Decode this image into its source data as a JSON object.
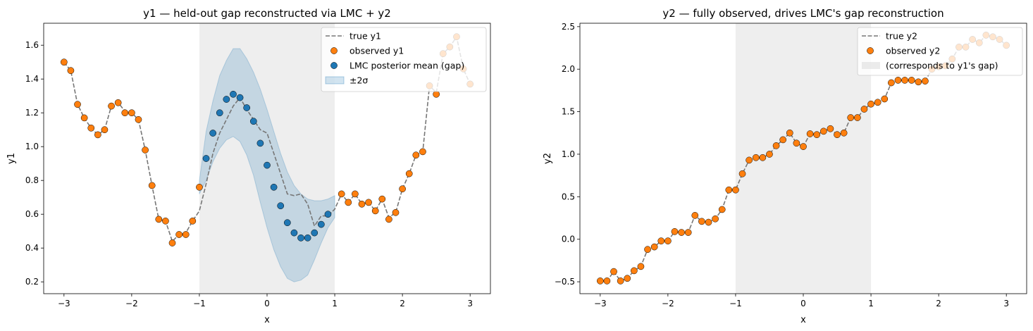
{
  "colors": {
    "observed": "#ff7f0e",
    "lmc": "#1f77b4",
    "band": "#1f77b4",
    "true_line": "#777777",
    "gap_shade": "#dddddd"
  },
  "chart_data": [
    {
      "type": "scatter",
      "title": "y1 — held-out gap reconstructed via LMC + y2",
      "xlabel": "x",
      "ylabel": "y1",
      "xlim": [
        -3.3,
        3.3
      ],
      "ylim": [
        0.13,
        1.73
      ],
      "xticks": [
        -3,
        -2,
        -1,
        0,
        1,
        2,
        3
      ],
      "xtick_labels": [
        "−3",
        "−2",
        "−1",
        "0",
        "1",
        "2",
        "3"
      ],
      "yticks": [
        0.2,
        0.4,
        0.6,
        0.8,
        1.0,
        1.2,
        1.4,
        1.6
      ],
      "ytick_labels": [
        "0.2",
        "0.4",
        "0.6",
        "0.8",
        "1.0",
        "1.2",
        "1.4",
        "1.6"
      ],
      "gap_region": [
        -1.0,
        1.0
      ],
      "grid": false,
      "legend_position": "top-right",
      "legend": [
        "true y1",
        "observed y1",
        "LMC posterior mean (gap)",
        "±2σ"
      ],
      "true_line": {
        "x": [
          -3.0,
          -2.9,
          -2.8,
          -2.7,
          -2.6,
          -2.5,
          -2.4,
          -2.3,
          -2.2,
          -2.1,
          -2.0,
          -1.9,
          -1.8,
          -1.7,
          -1.6,
          -1.5,
          -1.4,
          -1.3,
          -1.2,
          -1.1,
          -1.0,
          -0.9,
          -0.8,
          -0.7,
          -0.6,
          -0.5,
          -0.4,
          -0.3,
          -0.2,
          -0.1,
          0.0,
          0.1,
          0.2,
          0.3,
          0.4,
          0.5,
          0.6,
          0.7,
          0.8,
          0.9,
          1.0,
          1.1,
          1.2,
          1.3,
          1.4,
          1.5,
          1.6,
          1.7,
          1.8,
          1.9,
          2.0,
          2.1,
          2.2,
          2.3,
          2.4,
          2.5,
          2.6,
          2.7,
          2.8,
          2.9,
          3.0
        ],
        "y": [
          1.5,
          1.45,
          1.25,
          1.17,
          1.11,
          1.07,
          1.1,
          1.24,
          1.26,
          1.21,
          1.2,
          1.16,
          0.98,
          0.77,
          0.57,
          0.56,
          0.44,
          0.48,
          0.49,
          0.56,
          0.62,
          0.78,
          0.96,
          1.08,
          1.16,
          1.24,
          1.29,
          1.22,
          1.16,
          1.1,
          1.08,
          0.96,
          0.84,
          0.72,
          0.71,
          0.72,
          0.66,
          0.53,
          0.59,
          0.59,
          0.63,
          0.72,
          0.67,
          0.72,
          0.66,
          0.67,
          0.62,
          0.69,
          0.58,
          0.61,
          0.75,
          0.84,
          0.95,
          0.97,
          1.36,
          1.32,
          1.55,
          1.59,
          1.65,
          1.46,
          1.37
        ]
      },
      "observed": {
        "x": [
          -3.0,
          -2.9,
          -2.8,
          -2.7,
          -2.6,
          -2.5,
          -2.4,
          -2.3,
          -2.2,
          -2.1,
          -2.0,
          -1.9,
          -1.8,
          -1.7,
          -1.6,
          -1.5,
          -1.4,
          -1.3,
          -1.2,
          -1.1,
          -1.0,
          1.1,
          1.2,
          1.3,
          1.4,
          1.5,
          1.6,
          1.7,
          1.8,
          1.9,
          2.0,
          2.1,
          2.2,
          2.3,
          2.4,
          2.5,
          2.6,
          2.7,
          2.8,
          2.9,
          3.0
        ],
        "y": [
          1.5,
          1.45,
          1.25,
          1.17,
          1.11,
          1.07,
          1.1,
          1.24,
          1.26,
          1.2,
          1.2,
          1.16,
          0.98,
          0.77,
          0.57,
          0.56,
          0.43,
          0.48,
          0.48,
          0.56,
          0.76,
          0.72,
          0.67,
          0.72,
          0.66,
          0.67,
          0.62,
          0.69,
          0.57,
          0.61,
          0.75,
          0.84,
          0.95,
          0.97,
          1.36,
          1.31,
          1.55,
          1.59,
          1.65,
          1.46,
          1.37
        ]
      },
      "lmc_mean": {
        "x": [
          -0.9,
          -0.8,
          -0.7,
          -0.6,
          -0.5,
          -0.4,
          -0.3,
          -0.2,
          -0.1,
          0.0,
          0.1,
          0.2,
          0.3,
          0.4,
          0.5,
          0.6,
          0.7,
          0.8,
          0.9
        ],
        "y": [
          0.93,
          1.08,
          1.2,
          1.28,
          1.31,
          1.29,
          1.23,
          1.15,
          1.02,
          0.89,
          0.76,
          0.65,
          0.55,
          0.49,
          0.46,
          0.46,
          0.49,
          0.54,
          0.6
        ]
      },
      "band": {
        "x": [
          -1.0,
          -0.9,
          -0.8,
          -0.7,
          -0.6,
          -0.5,
          -0.4,
          -0.3,
          -0.2,
          -0.1,
          0.0,
          0.1,
          0.2,
          0.3,
          0.4,
          0.5,
          0.6,
          0.7,
          0.8,
          0.9,
          1.0
        ],
        "lower": [
          0.72,
          0.8,
          0.91,
          0.99,
          1.04,
          1.06,
          1.03,
          0.95,
          0.83,
          0.67,
          0.52,
          0.39,
          0.29,
          0.22,
          0.2,
          0.21,
          0.24,
          0.33,
          0.43,
          0.52,
          0.58
        ],
        "upper": [
          0.8,
          1.09,
          1.27,
          1.42,
          1.51,
          1.58,
          1.58,
          1.52,
          1.44,
          1.34,
          1.22,
          1.09,
          0.96,
          0.85,
          0.77,
          0.72,
          0.69,
          0.68,
          0.68,
          0.69,
          0.71
        ]
      }
    },
    {
      "type": "scatter",
      "title": "y2 — fully observed, drives LMC's gap reconstruction",
      "xlabel": "x",
      "ylabel": "y2",
      "xlim": [
        -3.3,
        3.3
      ],
      "ylim": [
        -0.64,
        2.54
      ],
      "xticks": [
        -3,
        -2,
        -1,
        0,
        1,
        2,
        3
      ],
      "xtick_labels": [
        "−3",
        "−2",
        "−1",
        "0",
        "1",
        "2",
        "3"
      ],
      "yticks": [
        -0.5,
        0.0,
        0.5,
        1.0,
        1.5,
        2.0,
        2.5
      ],
      "ytick_labels": [
        "−0.5",
        "0.0",
        "0.5",
        "1.0",
        "1.5",
        "2.0",
        "2.5"
      ],
      "gap_region": [
        -1.0,
        1.0
      ],
      "grid": false,
      "legend_position": "top-right",
      "legend": [
        "true y2",
        "observed y2",
        "(corresponds to y1's gap)"
      ],
      "true_line": {
        "x": [
          -3.0,
          -2.9,
          -2.8,
          -2.7,
          -2.6,
          -2.5,
          -2.4,
          -2.3,
          -2.2,
          -2.1,
          -2.0,
          -1.9,
          -1.8,
          -1.7,
          -1.6,
          -1.5,
          -1.4,
          -1.3,
          -1.2,
          -1.1,
          -1.0,
          -0.9,
          -0.8,
          -0.7,
          -0.6,
          -0.5,
          -0.4,
          -0.3,
          -0.2,
          -0.1,
          0.0,
          0.1,
          0.2,
          0.3,
          0.4,
          0.5,
          0.6,
          0.7,
          0.8,
          0.9,
          1.0,
          1.1,
          1.2,
          1.3,
          1.4,
          1.5,
          1.6,
          1.7,
          1.8,
          1.9,
          2.0,
          2.1,
          2.2,
          2.3,
          2.4,
          2.5,
          2.6,
          2.7,
          2.8,
          2.9,
          3.0
        ],
        "y": [
          -0.49,
          -0.49,
          -0.38,
          -0.49,
          -0.46,
          -0.37,
          -0.32,
          -0.12,
          -0.09,
          -0.02,
          -0.02,
          0.09,
          0.08,
          0.08,
          0.28,
          0.21,
          0.2,
          0.24,
          0.35,
          0.58,
          0.58,
          0.77,
          0.93,
          0.96,
          0.96,
          1.0,
          1.1,
          1.17,
          1.25,
          1.13,
          1.09,
          1.24,
          1.23,
          1.27,
          1.3,
          1.23,
          1.25,
          1.43,
          1.43,
          1.53,
          1.59,
          1.61,
          1.65,
          1.84,
          1.87,
          1.87,
          1.87,
          1.85,
          1.86,
          2.0,
          2.03,
          2.04,
          2.12,
          2.26,
          2.26,
          2.35,
          2.31,
          2.4,
          2.38,
          2.35,
          2.28
        ]
      },
      "observed": {
        "x": [
          -3.0,
          -2.9,
          -2.8,
          -2.7,
          -2.6,
          -2.5,
          -2.4,
          -2.3,
          -2.2,
          -2.1,
          -2.0,
          -1.9,
          -1.8,
          -1.7,
          -1.6,
          -1.5,
          -1.4,
          -1.3,
          -1.2,
          -1.1,
          -1.0,
          -0.9,
          -0.8,
          -0.7,
          -0.6,
          -0.5,
          -0.4,
          -0.3,
          -0.2,
          -0.1,
          0.0,
          0.1,
          0.2,
          0.3,
          0.4,
          0.5,
          0.6,
          0.7,
          0.8,
          0.9,
          1.0,
          1.1,
          1.2,
          1.3,
          1.4,
          1.5,
          1.6,
          1.7,
          1.8,
          1.9,
          2.0,
          2.1,
          2.2,
          2.3,
          2.4,
          2.5,
          2.6,
          2.7,
          2.8,
          2.9,
          3.0
        ],
        "y": [
          -0.49,
          -0.49,
          -0.38,
          -0.49,
          -0.46,
          -0.37,
          -0.32,
          -0.12,
          -0.09,
          -0.02,
          -0.02,
          0.09,
          0.08,
          0.08,
          0.28,
          0.21,
          0.2,
          0.24,
          0.35,
          0.58,
          0.58,
          0.77,
          0.93,
          0.96,
          0.96,
          1.0,
          1.1,
          1.17,
          1.25,
          1.13,
          1.09,
          1.24,
          1.23,
          1.27,
          1.3,
          1.23,
          1.25,
          1.43,
          1.43,
          1.53,
          1.59,
          1.61,
          1.65,
          1.84,
          1.87,
          1.87,
          1.87,
          1.85,
          1.86,
          2.0,
          2.03,
          2.04,
          2.12,
          2.26,
          2.26,
          2.35,
          2.31,
          2.4,
          2.38,
          2.35,
          2.28
        ]
      }
    }
  ]
}
